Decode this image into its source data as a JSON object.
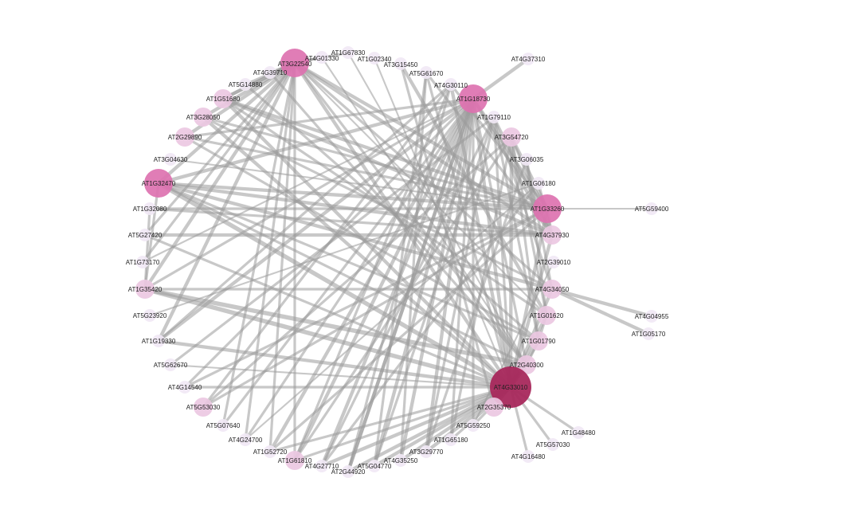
{
  "colors": {
    "edge": "#9a9a9a",
    "hub_dark": "#a8285c",
    "hub_mid": "#dd72b0",
    "node_light": "#ecc8e2",
    "node_pale": "#f1e8f5"
  },
  "nodes": [
    {
      "id": "AT3G22540",
      "label": "AT3G22540",
      "level": "mid"
    },
    {
      "id": "AT4G01330",
      "label": "AT4G01330",
      "level": "pale"
    },
    {
      "id": "AT1G67830",
      "label": "AT1G67830",
      "level": "pale"
    },
    {
      "id": "AT1G02340",
      "label": "AT1G02340",
      "level": "pale"
    },
    {
      "id": "AT3G15450",
      "label": "AT3G15450",
      "level": "pale"
    },
    {
      "id": "AT5G61670",
      "label": "AT5G61670",
      "level": "pale"
    },
    {
      "id": "AT4G30110",
      "label": "AT4G30110",
      "level": "pale"
    },
    {
      "id": "AT1G18730",
      "label": "AT1G18730",
      "level": "mid"
    },
    {
      "id": "AT1G79110",
      "label": "AT1G79110",
      "level": "pale"
    },
    {
      "id": "AT3G54720",
      "label": "AT3G54720",
      "level": "light"
    },
    {
      "id": "AT3G06035",
      "label": "AT3G06035",
      "level": "pale"
    },
    {
      "id": "AT1G06180",
      "label": "AT1G06180",
      "level": "pale"
    },
    {
      "id": "AT1G33260",
      "label": "AT1G33260",
      "level": "mid"
    },
    {
      "id": "AT4G37930",
      "label": "AT4G37930",
      "level": "light"
    },
    {
      "id": "AT2G39010",
      "label": "AT2G39010",
      "level": "pale"
    },
    {
      "id": "AT4G34050",
      "label": "AT4G34050",
      "level": "light"
    },
    {
      "id": "AT1G01620",
      "label": "AT1G01620",
      "level": "light"
    },
    {
      "id": "AT1G01790",
      "label": "AT1G01790",
      "level": "light"
    },
    {
      "id": "AT2G40300",
      "label": "AT2G40300",
      "level": "light"
    },
    {
      "id": "AT4G33010",
      "label": "AT4G33010",
      "level": "dark"
    },
    {
      "id": "AT2G35370",
      "label": "AT2G35370",
      "level": "light"
    },
    {
      "id": "AT5G59250",
      "label": "AT5G59250",
      "level": "pale"
    },
    {
      "id": "AT1G65180",
      "label": "AT1G65180",
      "level": "pale"
    },
    {
      "id": "AT3G29770",
      "label": "AT3G29770",
      "level": "pale"
    },
    {
      "id": "AT4G35250",
      "label": "AT4G35250",
      "level": "pale"
    },
    {
      "id": "AT5G04770",
      "label": "AT5G04770",
      "level": "pale"
    },
    {
      "id": "AT2G44920",
      "label": "AT2G44920",
      "level": "pale"
    },
    {
      "id": "AT4G27710",
      "label": "AT4G27710",
      "level": "pale"
    },
    {
      "id": "AT1G61810",
      "label": "AT1G61810",
      "level": "light"
    },
    {
      "id": "AT1G52720",
      "label": "AT1G52720",
      "level": "pale"
    },
    {
      "id": "AT4G24700",
      "label": "AT4G24700",
      "level": "pale"
    },
    {
      "id": "AT5G07640",
      "label": "AT5G07640",
      "level": "pale"
    },
    {
      "id": "AT5G53030",
      "label": "AT5G53030",
      "level": "light"
    },
    {
      "id": "AT4G14540",
      "label": "AT4G14540",
      "level": "pale"
    },
    {
      "id": "AT5G62670",
      "label": "AT5G62670",
      "level": "pale"
    },
    {
      "id": "AT1G19330",
      "label": "AT1G19330",
      "level": "pale"
    },
    {
      "id": "AT5G23920",
      "label": "AT5G23920",
      "level": "pale"
    },
    {
      "id": "AT1G35420",
      "label": "AT1G35420",
      "level": "light"
    },
    {
      "id": "AT1G73170",
      "label": "AT1G73170",
      "level": "pale"
    },
    {
      "id": "AT5G27420",
      "label": "AT5G27420",
      "level": "pale"
    },
    {
      "id": "AT1G32080",
      "label": "AT1G32080",
      "level": "pale"
    },
    {
      "id": "AT1G32470",
      "label": "AT1G32470",
      "level": "mid"
    },
    {
      "id": "AT3G04630",
      "label": "AT3G04630",
      "level": "pale"
    },
    {
      "id": "AT2G29890",
      "label": "AT2G29890",
      "level": "light"
    },
    {
      "id": "AT3G28050",
      "label": "AT3G28050",
      "level": "light"
    },
    {
      "id": "AT1G51680",
      "label": "AT1G51680",
      "level": "light"
    },
    {
      "id": "AT5G14880",
      "label": "AT5G14880",
      "level": "pale"
    },
    {
      "id": "AT4G39710",
      "label": "AT4G39710",
      "level": "pale"
    },
    {
      "id": "AT4G37310",
      "label": "AT4G37310",
      "level": "pale"
    },
    {
      "id": "AT5G59400",
      "label": "AT5G59400",
      "level": "pale"
    },
    {
      "id": "AT4G04955",
      "label": "AT4G04955",
      "level": "pale"
    },
    {
      "id": "AT1G05170",
      "label": "AT1G05170",
      "level": "pale"
    },
    {
      "id": "AT1G48480",
      "label": "AT1G48480",
      "level": "pale"
    },
    {
      "id": "AT5G57030",
      "label": "AT5G57030",
      "level": "pale"
    },
    {
      "id": "AT4G16480",
      "label": "AT4G16480",
      "level": "pale"
    }
  ],
  "edges": [
    {
      "source": "AT4G33010",
      "target": "AT3G22540",
      "weight": 3
    },
    {
      "source": "AT4G33010",
      "target": "AT1G18730",
      "weight": 3
    },
    {
      "source": "AT4G33010",
      "target": "AT1G32470",
      "weight": 4
    },
    {
      "source": "AT4G33010",
      "target": "AT1G35420",
      "weight": 4
    },
    {
      "source": "AT4G33010",
      "target": "AT1G19330",
      "weight": 3
    },
    {
      "source": "AT4G33010",
      "target": "AT5G62670",
      "weight": 1
    },
    {
      "source": "AT4G33010",
      "target": "AT4G14540",
      "weight": 2
    },
    {
      "source": "AT4G33010",
      "target": "AT1G52720",
      "weight": 2
    },
    {
      "source": "AT4G33010",
      "target": "AT1G61810",
      "weight": 2
    },
    {
      "source": "AT4G33010",
      "target": "AT4G27710",
      "weight": 3
    },
    {
      "source": "AT4G33010",
      "target": "AT2G44920",
      "weight": 3
    },
    {
      "source": "AT4G33010",
      "target": "AT5G04770",
      "weight": 3
    },
    {
      "source": "AT4G33010",
      "target": "AT4G35250",
      "weight": 3
    },
    {
      "source": "AT4G33010",
      "target": "AT3G29770",
      "weight": 3
    },
    {
      "source": "AT4G33010",
      "target": "AT1G65180",
      "weight": 2
    },
    {
      "source": "AT4G33010",
      "target": "AT5G59250",
      "weight": 2
    },
    {
      "source": "AT4G33010",
      "target": "AT2G35370",
      "weight": 2
    },
    {
      "source": "AT4G33010",
      "target": "AT2G40300",
      "weight": 3
    },
    {
      "source": "AT4G33010",
      "target": "AT1G01790",
      "weight": 3
    },
    {
      "source": "AT4G33010",
      "target": "AT1G01620",
      "weight": 3
    },
    {
      "source": "AT4G33010",
      "target": "AT4G34050",
      "weight": 3
    },
    {
      "source": "AT4G33010",
      "target": "AT4G37930",
      "weight": 3
    },
    {
      "source": "AT4G33010",
      "target": "AT1G33260",
      "weight": 3
    },
    {
      "source": "AT4G33010",
      "target": "AT3G54720",
      "weight": 3
    },
    {
      "source": "AT4G33010",
      "target": "AT1G79110",
      "weight": 2
    },
    {
      "source": "AT4G33010",
      "target": "AT4G30110",
      "weight": 3
    },
    {
      "source": "AT4G33010",
      "target": "AT5G61670",
      "weight": 2
    },
    {
      "source": "AT4G33010",
      "target": "AT1G02340",
      "weight": 1
    },
    {
      "source": "AT4G33010",
      "target": "AT3G28050",
      "weight": 3
    },
    {
      "source": "AT4G33010",
      "target": "AT1G51680",
      "weight": 3
    },
    {
      "source": "AT4G33010",
      "target": "AT5G27420",
      "weight": 2
    },
    {
      "source": "AT4G33010",
      "target": "AT1G48480",
      "weight": 2
    },
    {
      "source": "AT4G33010",
      "target": "AT5G57030",
      "weight": 2
    },
    {
      "source": "AT4G33010",
      "target": "AT4G16480",
      "weight": 2
    },
    {
      "source": "AT1G18730",
      "target": "AT4G37310",
      "weight": 3
    },
    {
      "source": "AT1G18730",
      "target": "AT1G19330",
      "weight": 3
    },
    {
      "source": "AT1G18730",
      "target": "AT1G35420",
      "weight": 2
    },
    {
      "source": "AT1G18730",
      "target": "AT5G07640",
      "weight": 2
    },
    {
      "source": "AT1G18730",
      "target": "AT4G24700",
      "weight": 2
    },
    {
      "source": "AT1G18730",
      "target": "AT1G52720",
      "weight": 3
    },
    {
      "source": "AT1G18730",
      "target": "AT1G61810",
      "weight": 3
    },
    {
      "source": "AT1G18730",
      "target": "AT4G27710",
      "weight": 3
    },
    {
      "source": "AT1G18730",
      "target": "AT2G44920",
      "weight": 3
    },
    {
      "source": "AT1G18730",
      "target": "AT5G04770",
      "weight": 3
    },
    {
      "source": "AT1G18730",
      "target": "AT4G35250",
      "weight": 3
    },
    {
      "source": "AT1G18730",
      "target": "AT3G29770",
      "weight": 3
    },
    {
      "source": "AT1G18730",
      "target": "AT1G65180",
      "weight": 2
    },
    {
      "source": "AT1G18730",
      "target": "AT5G59250",
      "weight": 2
    },
    {
      "source": "AT1G18730",
      "target": "AT1G32470",
      "weight": 3
    },
    {
      "source": "AT1G18730",
      "target": "AT2G29890",
      "weight": 2
    },
    {
      "source": "AT1G18730",
      "target": "AT1G33260",
      "weight": 3
    },
    {
      "source": "AT1G18730",
      "target": "AT4G37930",
      "weight": 3
    },
    {
      "source": "AT1G18730",
      "target": "AT2G40300",
      "weight": 2
    },
    {
      "source": "AT3G22540",
      "target": "AT4G37930",
      "weight": 3
    },
    {
      "source": "AT3G22540",
      "target": "AT1G33260",
      "weight": 3
    },
    {
      "source": "AT3G22540",
      "target": "AT2G40300",
      "weight": 2
    },
    {
      "source": "AT3G22540",
      "target": "AT4G34050",
      "weight": 2
    },
    {
      "source": "AT3G22540",
      "target": "AT1G01620",
      "weight": 1
    },
    {
      "source": "AT3G22540",
      "target": "AT1G19330",
      "weight": 3
    },
    {
      "source": "AT3G22540",
      "target": "AT1G35420",
      "weight": 3
    },
    {
      "source": "AT3G22540",
      "target": "AT1G73170",
      "weight": 2
    },
    {
      "source": "AT3G22540",
      "target": "AT5G27420",
      "weight": 2
    },
    {
      "source": "AT3G22540",
      "target": "AT1G32470",
      "weight": 3
    },
    {
      "source": "AT3G22540",
      "target": "AT1G51680",
      "weight": 3
    },
    {
      "source": "AT3G22540",
      "target": "AT3G28050",
      "weight": 3
    },
    {
      "source": "AT3G22540",
      "target": "AT2G29890",
      "weight": 3
    },
    {
      "source": "AT3G22540",
      "target": "AT5G14880",
      "weight": 2
    },
    {
      "source": "AT3G22540",
      "target": "AT4G39710",
      "weight": 2
    },
    {
      "source": "AT3G22540",
      "target": "AT1G61810",
      "weight": 2
    },
    {
      "source": "AT3G22540",
      "target": "AT4G24700",
      "weight": 2
    },
    {
      "source": "AT3G22540",
      "target": "AT1G52720",
      "weight": 2
    },
    {
      "source": "AT1G33260",
      "target": "AT5G59400",
      "weight": 1
    },
    {
      "source": "AT1G33260",
      "target": "AT1G32470",
      "weight": 3
    },
    {
      "source": "AT1G33260",
      "target": "AT2G29890",
      "weight": 2
    },
    {
      "source": "AT1G33260",
      "target": "AT1G32080",
      "weight": 2
    },
    {
      "source": "AT1G33260",
      "target": "AT1G51680",
      "weight": 3
    },
    {
      "source": "AT1G33260",
      "target": "AT3G28050",
      "weight": 2
    },
    {
      "source": "AT1G33260",
      "target": "AT5G53030",
      "weight": 2
    },
    {
      "source": "AT1G33260",
      "target": "AT4G14540",
      "weight": 2
    },
    {
      "source": "AT1G33260",
      "target": "AT3G54720",
      "weight": 3
    },
    {
      "source": "AT1G33260",
      "target": "AT4G30110",
      "weight": 2
    },
    {
      "source": "AT1G32470",
      "target": "AT4G37930",
      "weight": 3
    },
    {
      "source": "AT1G32470",
      "target": "AT4G34050",
      "weight": 3
    },
    {
      "source": "AT1G32470",
      "target": "AT2G40300",
      "weight": 2
    },
    {
      "source": "AT1G32470",
      "target": "AT1G01790",
      "weight": 2
    },
    {
      "source": "AT5G27420",
      "target": "AT4G37930",
      "weight": 3
    },
    {
      "source": "AT1G32080",
      "target": "AT4G37930",
      "weight": 2
    },
    {
      "source": "AT1G35420",
      "target": "AT4G34050",
      "weight": 2
    },
    {
      "source": "AT1G35420",
      "target": "AT2G40300",
      "weight": 4
    },
    {
      "source": "AT4G34050",
      "target": "AT4G04955",
      "weight": 3
    },
    {
      "source": "AT4G34050",
      "target": "AT1G05170",
      "weight": 3
    },
    {
      "source": "AT4G37930",
      "target": "AT3G54720",
      "weight": 2
    },
    {
      "source": "AT4G37930",
      "target": "AT1G79110",
      "weight": 2
    },
    {
      "source": "AT4G37930",
      "target": "AT5G61670",
      "weight": 2
    },
    {
      "source": "AT4G37930",
      "target": "AT1G06180",
      "weight": 2
    },
    {
      "source": "AT1G01620",
      "target": "AT3G54720",
      "weight": 2
    },
    {
      "source": "AT4G34050",
      "target": "AT1G79110",
      "weight": 2
    },
    {
      "source": "AT4G34050",
      "target": "AT3G06035",
      "weight": 2
    },
    {
      "source": "AT1G01620",
      "target": "AT3G06035",
      "weight": 2
    },
    {
      "source": "AT1G01790",
      "target": "AT1G79110",
      "weight": 2
    },
    {
      "source": "AT1G01790",
      "target": "AT3G54720",
      "weight": 2
    },
    {
      "source": "AT3G15450",
      "target": "AT1G01620",
      "weight": 3
    },
    {
      "source": "AT3G15450",
      "target": "AT2G35370",
      "weight": 2
    },
    {
      "source": "AT1G67830",
      "target": "AT2G40300",
      "weight": 1
    },
    {
      "source": "AT4G01330",
      "target": "AT2G40300",
      "weight": 1
    },
    {
      "source": "AT4G30110",
      "target": "AT1G19330",
      "weight": 2
    },
    {
      "source": "AT4G30110",
      "target": "AT5G53030",
      "weight": 2
    },
    {
      "source": "AT4G30110",
      "target": "AT2G44920",
      "weight": 2
    },
    {
      "source": "AT5G61670",
      "target": "AT5G04770",
      "weight": 2
    },
    {
      "source": "AT5G61670",
      "target": "AT4G35250",
      "weight": 2
    },
    {
      "source": "AT1G79110",
      "target": "AT5G04770",
      "weight": 2
    },
    {
      "source": "AT1G79110",
      "target": "AT3G29770",
      "weight": 2
    },
    {
      "source": "AT3G54720",
      "target": "AT1G65180",
      "weight": 2
    },
    {
      "source": "AT3G54720",
      "target": "AT1G61810",
      "weight": 2
    },
    {
      "source": "AT3G06035",
      "target": "AT3G29770",
      "weight": 2
    },
    {
      "source": "AT1G06180",
      "target": "AT4G27710",
      "weight": 2
    },
    {
      "source": "AT2G39010",
      "target": "AT5G59250",
      "weight": 1
    },
    {
      "source": "AT1G51680",
      "target": "AT4G37930",
      "weight": 3
    },
    {
      "source": "AT1G51680",
      "target": "AT1G01620",
      "weight": 2
    },
    {
      "source": "AT3G28050",
      "target": "AT4G34050",
      "weight": 2
    },
    {
      "source": "AT2G29890",
      "target": "AT1G01790",
      "weight": 2
    },
    {
      "source": "AT3G04630",
      "target": "AT1G33260",
      "weight": 1
    },
    {
      "source": "AT4G39710",
      "target": "AT2G40300",
      "weight": 2
    },
    {
      "source": "AT5G14880",
      "target": "AT1G01790",
      "weight": 2
    },
    {
      "source": "AT5G23920",
      "target": "AT1G06180",
      "weight": 1
    },
    {
      "source": "AT1G73170",
      "target": "AT1G18730",
      "weight": 1
    },
    {
      "source": "AT5G62670",
      "target": "AT1G79110",
      "weight": 2
    },
    {
      "source": "AT4G14540",
      "target": "AT1G18730",
      "weight": 2
    },
    {
      "source": "AT5G53030",
      "target": "AT3G54720",
      "weight": 2
    },
    {
      "source": "AT5G07640",
      "target": "AT3G22540",
      "weight": 2
    },
    {
      "source": "AT4G24700",
      "target": "AT1G06180",
      "weight": 1
    },
    {
      "source": "AT1G52720",
      "target": "AT1G33260",
      "weight": 2
    },
    {
      "source": "AT1G61810",
      "target": "AT4G30110",
      "weight": 2
    },
    {
      "source": "AT4G27710",
      "target": "AT1G79110",
      "weight": 2
    },
    {
      "source": "AT2G44920",
      "target": "AT1G18730",
      "weight": 3
    },
    {
      "source": "AT3G22540",
      "target": "AT1G67830",
      "weight": 2
    },
    {
      "source": "AT3G22540",
      "target": "AT4G01330",
      "weight": 2
    },
    {
      "source": "AT1G51680",
      "target": "AT3G22540",
      "weight": 3
    },
    {
      "source": "AT1G32470",
      "target": "AT1G35420",
      "weight": 2
    },
    {
      "source": "AT1G35420",
      "target": "AT1G32080",
      "weight": 2
    },
    {
      "source": "AT1G33260",
      "target": "AT4G37930",
      "weight": 2
    },
    {
      "source": "AT1G01620",
      "target": "AT1G01790",
      "weight": 2
    },
    {
      "source": "AT1G01790",
      "target": "AT2G40300",
      "weight": 2
    }
  ]
}
